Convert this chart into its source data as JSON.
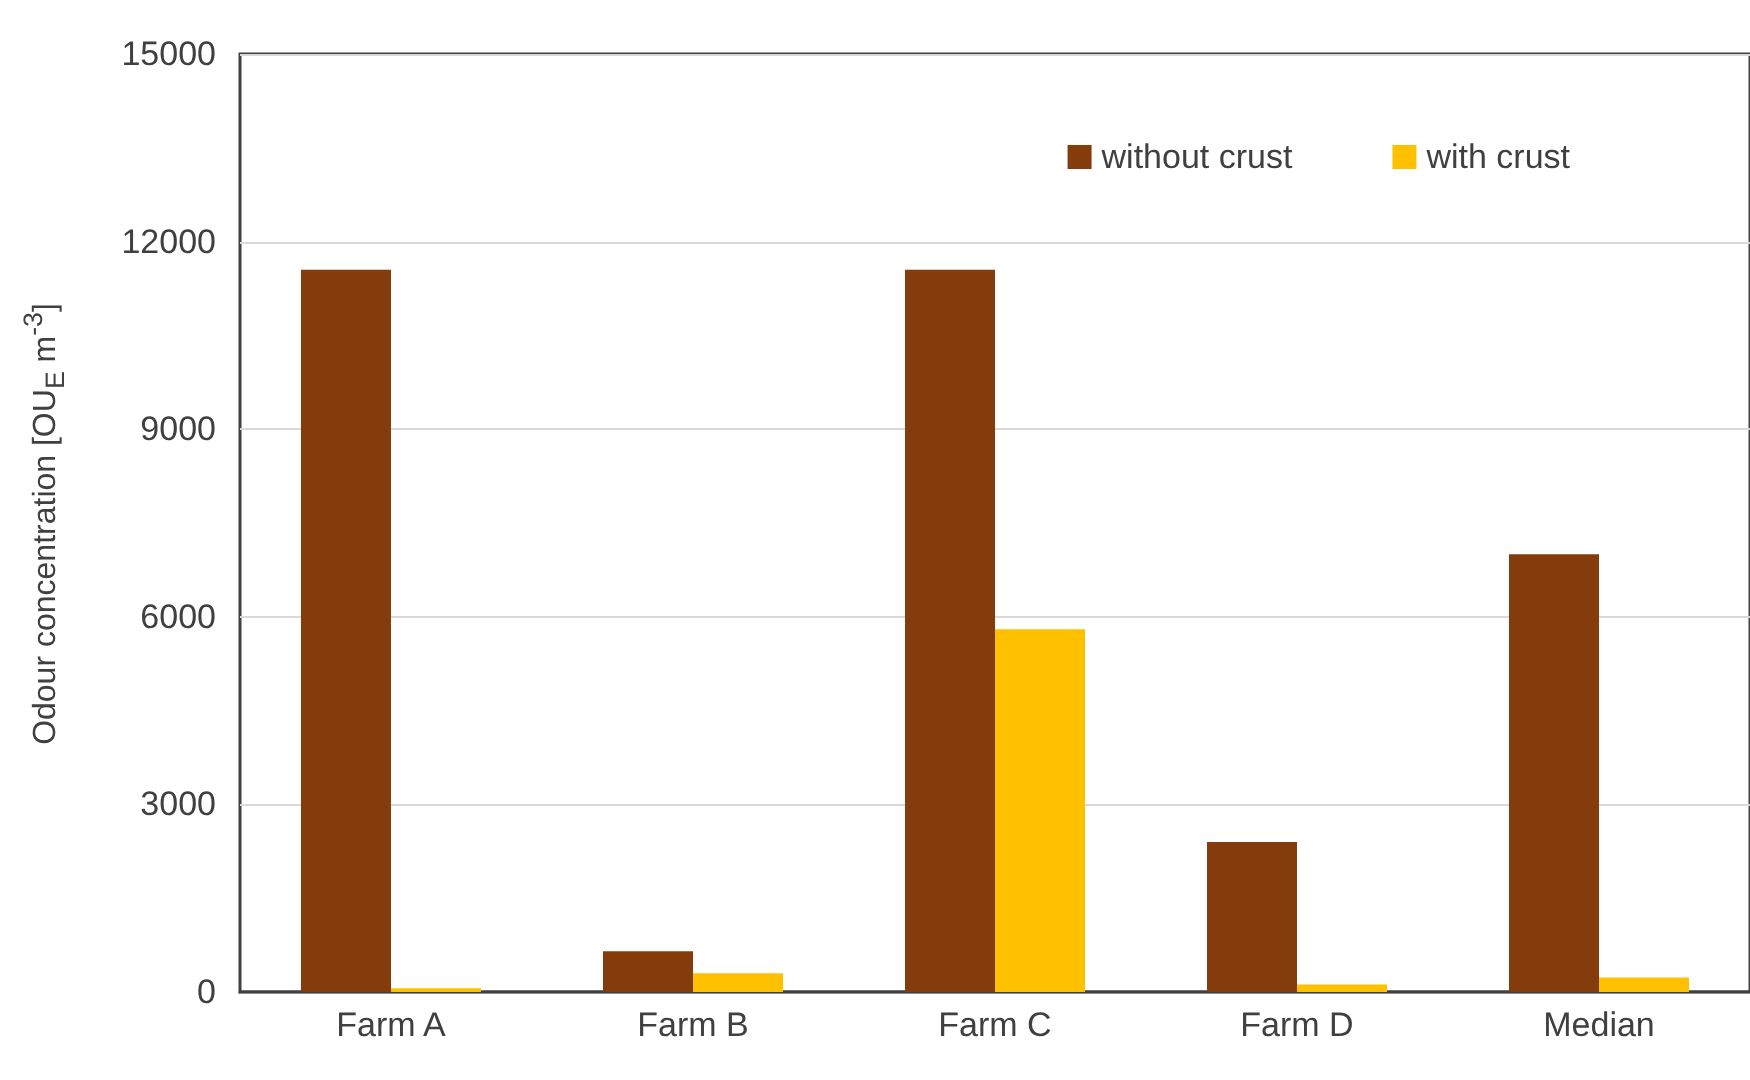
{
  "chart_data": {
    "type": "bar",
    "ylabel": "Odour concentration [OU$_{E}$ m$^{-3}$]",
    "categories": [
      "Farm A",
      "Farm B",
      "Farm C",
      "Farm D",
      "Median"
    ],
    "series": [
      {
        "name": "without crust",
        "color": "#843c0c",
        "values": [
          11550,
          650,
          11550,
          2400,
          7000
        ]
      },
      {
        "name": "with crust",
        "color": "#ffc000",
        "values": [
          60,
          300,
          5800,
          120,
          230
        ]
      }
    ],
    "ylim": [
      0,
      15000
    ],
    "yticks": [
      0,
      3000,
      6000,
      9000,
      12000,
      15000
    ],
    "grid": "y",
    "legend": "top right"
  }
}
